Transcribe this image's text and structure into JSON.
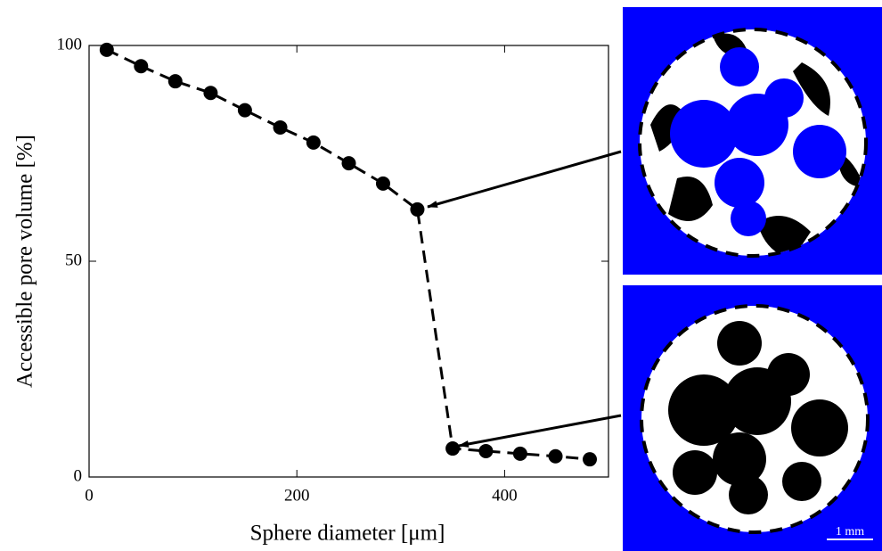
{
  "chart_data": {
    "type": "line",
    "xlabel": "Sphere diameter [μm]",
    "ylabel": "Accessible pore volume [%]",
    "x": [
      17,
      50,
      83,
      117,
      150,
      184,
      216,
      250,
      283,
      316,
      350,
      382,
      415,
      449,
      482
    ],
    "series": [
      {
        "color": "#000000",
        "values": [
          99,
          95.2,
          91.7,
          89,
          85,
          81,
          77.5,
          72.7,
          68,
          62,
          6.6,
          6,
          5.4,
          4.8,
          4.1
        ]
      }
    ],
    "xlim": [
      0,
      500
    ],
    "ylim": [
      0,
      100
    ],
    "xticks": [
      0,
      200,
      400
    ],
    "yticks": [
      0,
      50,
      100
    ],
    "scale_bar": "1 mm"
  }
}
